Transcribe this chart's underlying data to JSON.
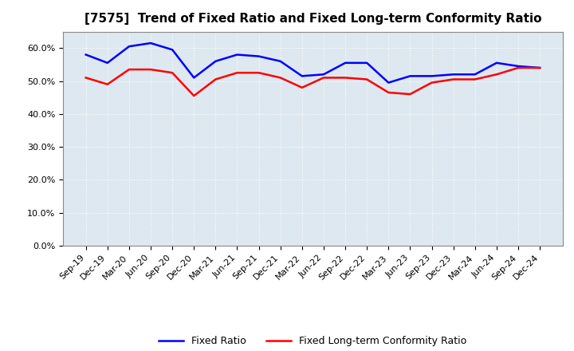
{
  "title": "[7575]  Trend of Fixed Ratio and Fixed Long-term Conformity Ratio",
  "x_labels": [
    "Sep-19",
    "Dec-19",
    "Mar-20",
    "Jun-20",
    "Sep-20",
    "Dec-20",
    "Mar-21",
    "Jun-21",
    "Sep-21",
    "Dec-21",
    "Mar-22",
    "Jun-22",
    "Sep-22",
    "Dec-22",
    "Mar-23",
    "Jun-23",
    "Sep-23",
    "Dec-23",
    "Mar-24",
    "Jun-24",
    "Sep-24",
    "Dec-24"
  ],
  "fixed_ratio": [
    58.0,
    55.5,
    60.5,
    61.5,
    59.5,
    51.0,
    56.0,
    58.0,
    57.5,
    56.0,
    51.5,
    52.0,
    55.5,
    55.5,
    49.5,
    51.5,
    51.5,
    52.0,
    52.0,
    55.5,
    54.5,
    54.0
  ],
  "fixed_lt_ratio": [
    51.0,
    49.0,
    53.5,
    53.5,
    52.5,
    45.5,
    50.5,
    52.5,
    52.5,
    51.0,
    48.0,
    51.0,
    51.0,
    50.5,
    46.5,
    46.0,
    49.5,
    50.5,
    50.5,
    52.0,
    54.0,
    54.0
  ],
  "fixed_ratio_color": "#0000FF",
  "fixed_lt_ratio_color": "#FF0000",
  "ylim": [
    0,
    65
  ],
  "yticks": [
    0,
    10,
    20,
    30,
    40,
    50,
    60
  ],
  "plot_bg_color": "#dde8f0",
  "grid_color": "#ffffff",
  "outer_bg_color": "#ffffff",
  "legend_fixed_ratio": "Fixed Ratio",
  "legend_fixed_lt_ratio": "Fixed Long-term Conformity Ratio",
  "title_fontsize": 11,
  "tick_fontsize": 8,
  "legend_fontsize": 9
}
